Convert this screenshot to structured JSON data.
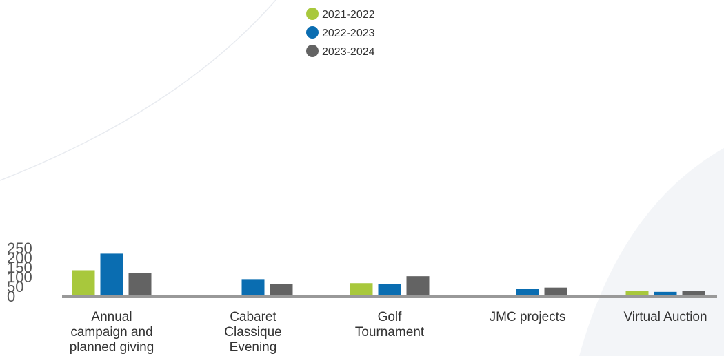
{
  "chart_data": {
    "type": "bar",
    "title": "",
    "xlabel": "",
    "ylabel": "",
    "ylim": [
      0,
      250
    ],
    "yticks": [
      0,
      50,
      100,
      150,
      200,
      250
    ],
    "grid": false,
    "legend_position": "top-center",
    "categories": [
      [
        "Annual",
        "campaign and",
        "planned giving"
      ],
      [
        "Cabaret",
        "Classique",
        "Evening"
      ],
      [
        "Golf",
        "Tournament"
      ],
      [
        "JMC projects"
      ],
      [
        "Virtual Auction"
      ]
    ],
    "series": [
      {
        "name": "2021-2022",
        "color": "#A8C83C",
        "values": [
          134,
          0,
          67,
          5,
          25
        ]
      },
      {
        "name": "2022-2023",
        "color": "#0A6DB1",
        "values": [
          220,
          88,
          63,
          36,
          22
        ]
      },
      {
        "name": "2023-2024",
        "color": "#636363",
        "values": [
          121,
          63,
          103,
          44,
          25
        ]
      }
    ],
    "axis_color": "#999999",
    "background_arc_color": "#E8EBF0"
  }
}
